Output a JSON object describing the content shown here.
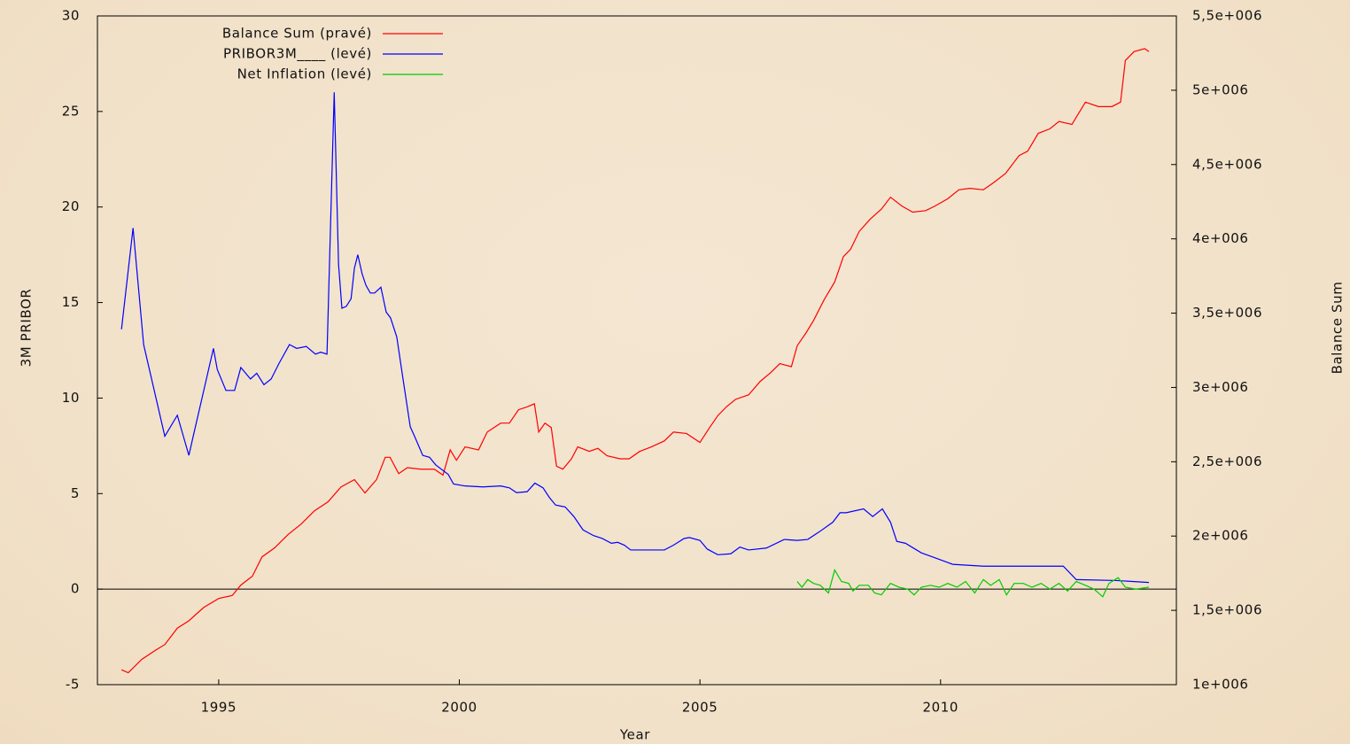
{
  "chart_data": {
    "type": "line",
    "xlabel": "Year",
    "ylabel": "3M PRIBOR",
    "y2label": "Balance Sum",
    "xlim": [
      1992.48,
      2014.9
    ],
    "xticks": [
      1995,
      2000,
      2005,
      2010
    ],
    "ylim": [
      -5,
      30
    ],
    "yticks": [
      -5,
      0,
      5,
      10,
      15,
      20,
      25,
      30
    ],
    "y2lim": [
      1000000,
      5500000
    ],
    "y2ticks": [
      {
        "value": 1000000,
        "label": "1e+006"
      },
      {
        "value": 1500000,
        "label": "1,5e+006"
      },
      {
        "value": 2000000,
        "label": "2e+006"
      },
      {
        "value": 2500000,
        "label": "2,5e+006"
      },
      {
        "value": 3000000,
        "label": "3e+006"
      },
      {
        "value": 3500000,
        "label": "3,5e+006"
      },
      {
        "value": 4000000,
        "label": "4e+006"
      },
      {
        "value": 4500000,
        "label": "4,5e+006"
      },
      {
        "value": 5000000,
        "label": "5e+006"
      },
      {
        "value": 5500000,
        "label": "5,5e+006"
      }
    ],
    "zero_line": true,
    "grid": false,
    "legend": "top-left",
    "series": [
      {
        "name": "Balance Sum (pravé)",
        "color": "#ff0000",
        "axis": "y2",
        "x": [
          1992.98,
          1993.12,
          1993.4,
          1993.68,
          1993.88,
          1994.14,
          1994.38,
          1994.69,
          1995.0,
          1995.28,
          1995.46,
          1995.7,
          1995.9,
          1996.16,
          1996.44,
          1996.71,
          1996.99,
          1997.27,
          1997.54,
          1997.82,
          1998.04,
          1998.28,
          1998.46,
          1998.56,
          1998.74,
          1998.92,
          1999.2,
          1999.48,
          1999.66,
          1999.81,
          1999.94,
          2000.12,
          2000.4,
          2000.58,
          2000.86,
          2001.04,
          2001.23,
          2001.41,
          2001.56,
          2001.65,
          2001.78,
          2001.91,
          2002.02,
          2002.15,
          2002.33,
          2002.46,
          2002.7,
          2002.88,
          2003.07,
          2003.34,
          2003.53,
          2003.75,
          2003.99,
          2004.26,
          2004.45,
          2004.72,
          2005.0,
          2005.18,
          2005.37,
          2005.55,
          2005.74,
          2006.01,
          2006.25,
          2006.47,
          2006.66,
          2006.9,
          2007.02,
          2007.21,
          2007.36,
          2007.58,
          2007.8,
          2007.98,
          2008.13,
          2008.31,
          2008.53,
          2008.77,
          2008.96,
          2009.2,
          2009.42,
          2009.69,
          2009.88,
          2010.15,
          2010.38,
          2010.61,
          2010.89,
          2011.11,
          2011.35,
          2011.63,
          2011.81,
          2012.03,
          2012.27,
          2012.46,
          2012.73,
          2013.01,
          2013.28,
          2013.56,
          2013.74,
          2013.84,
          2014.02,
          2014.24,
          2014.33
        ],
        "values": [
          1100000,
          1080000,
          1170000,
          1230000,
          1270000,
          1380000,
          1430000,
          1520000,
          1580000,
          1600000,
          1670000,
          1730000,
          1860000,
          1920000,
          2010000,
          2080000,
          2170000,
          2230000,
          2330000,
          2380000,
          2290000,
          2380000,
          2530000,
          2530000,
          2420000,
          2460000,
          2450000,
          2450000,
          2410000,
          2580000,
          2510000,
          2600000,
          2580000,
          2700000,
          2760000,
          2760000,
          2850000,
          2870000,
          2890000,
          2700000,
          2760000,
          2730000,
          2470000,
          2450000,
          2520000,
          2600000,
          2570000,
          2590000,
          2540000,
          2520000,
          2520000,
          2570000,
          2600000,
          2640000,
          2700000,
          2690000,
          2630000,
          2720000,
          2810000,
          2870000,
          2920000,
          2950000,
          3040000,
          3100000,
          3160000,
          3140000,
          3280000,
          3370000,
          3450000,
          3590000,
          3710000,
          3880000,
          3930000,
          4050000,
          4130000,
          4200000,
          4280000,
          4220000,
          4180000,
          4190000,
          4220000,
          4270000,
          4330000,
          4340000,
          4330000,
          4380000,
          4440000,
          4560000,
          4590000,
          4710000,
          4740000,
          4790000,
          4770000,
          4920000,
          4890000,
          4890000,
          4920000,
          5200000,
          5260000,
          5280000,
          5260000
        ]
      },
      {
        "name": "PRIBOR3M____ (levé)",
        "color": "#0000ff",
        "axis": "y",
        "x": [
          1992.98,
          1993.22,
          1993.44,
          1993.88,
          1994.14,
          1994.38,
          1994.47,
          1994.69,
          1994.89,
          1994.97,
          1995.15,
          1995.33,
          1995.46,
          1995.66,
          1995.79,
          1995.94,
          1996.09,
          1996.25,
          1996.47,
          1996.62,
          1996.82,
          1997.01,
          1997.12,
          1997.25,
          1997.4,
          1997.49,
          1997.56,
          1997.65,
          1997.75,
          1997.82,
          1997.89,
          1997.98,
          1998.06,
          1998.15,
          1998.24,
          1998.37,
          1998.48,
          1998.57,
          1998.7,
          1998.83,
          1998.98,
          1999.07,
          1999.24,
          1999.38,
          1999.51,
          1999.77,
          1999.88,
          2000.12,
          2000.49,
          2000.86,
          2001.04,
          2001.19,
          2001.41,
          2001.57,
          2001.74,
          2001.87,
          2002.0,
          2002.2,
          2002.38,
          2002.57,
          2002.79,
          2002.97,
          2003.16,
          2003.29,
          2003.43,
          2003.56,
          2003.89,
          2004.26,
          2004.45,
          2004.67,
          2004.78,
          2005.0,
          2005.15,
          2005.37,
          2005.64,
          2005.83,
          2006.01,
          2006.38,
          2006.75,
          2007.02,
          2007.24,
          2007.48,
          2007.76,
          2007.91,
          2008.04,
          2008.4,
          2008.59,
          2008.79,
          2008.96,
          2009.09,
          2009.27,
          2009.6,
          2009.93,
          2010.25,
          2010.89,
          2011.44,
          2012.18,
          2012.55,
          2012.82,
          2013.65,
          2014.33
        ],
        "values": [
          13.6,
          18.9,
          12.8,
          8.0,
          9.1,
          7.0,
          8.0,
          10.4,
          12.6,
          11.5,
          10.4,
          10.4,
          11.6,
          11.0,
          11.3,
          10.7,
          11.0,
          11.8,
          12.8,
          12.6,
          12.7,
          12.3,
          12.4,
          12.3,
          26.0,
          17.0,
          14.7,
          14.8,
          15.2,
          16.8,
          17.5,
          16.5,
          15.9,
          15.5,
          15.5,
          15.8,
          14.5,
          14.2,
          13.2,
          11.0,
          8.5,
          8.0,
          7.0,
          6.9,
          6.5,
          6.0,
          5.5,
          5.4,
          5.35,
          5.4,
          5.3,
          5.05,
          5.1,
          5.55,
          5.3,
          4.8,
          4.4,
          4.3,
          3.8,
          3.1,
          2.8,
          2.65,
          2.4,
          2.45,
          2.3,
          2.05,
          2.05,
          2.05,
          2.3,
          2.65,
          2.7,
          2.55,
          2.1,
          1.8,
          1.85,
          2.2,
          2.05,
          2.15,
          2.6,
          2.55,
          2.6,
          3.0,
          3.5,
          4.0,
          4.0,
          4.2,
          3.8,
          4.2,
          3.5,
          2.5,
          2.4,
          1.9,
          1.6,
          1.3,
          1.2,
          1.2,
          1.2,
          1.2,
          0.5,
          0.45,
          0.35
        ]
      },
      {
        "name": "Net Inflation (levé)",
        "color": "#00cc00",
        "axis": "y",
        "x": [
          2007.02,
          2007.12,
          2007.24,
          2007.36,
          2007.5,
          2007.67,
          2007.8,
          2007.94,
          2008.09,
          2008.18,
          2008.31,
          2008.5,
          2008.63,
          2008.77,
          2008.96,
          2009.14,
          2009.32,
          2009.45,
          2009.6,
          2009.79,
          2009.97,
          2010.15,
          2010.34,
          2010.52,
          2010.71,
          2010.89,
          2011.04,
          2011.22,
          2011.37,
          2011.53,
          2011.72,
          2011.9,
          2012.09,
          2012.27,
          2012.46,
          2012.64,
          2012.82,
          2013.01,
          2013.19,
          2013.37,
          2013.5,
          2013.69,
          2013.84,
          2014.06,
          2014.33
        ],
        "values": [
          0.4,
          0.1,
          0.5,
          0.3,
          0.2,
          -0.2,
          1.0,
          0.4,
          0.3,
          -0.1,
          0.2,
          0.2,
          -0.2,
          -0.3,
          0.3,
          0.1,
          0.0,
          -0.3,
          0.1,
          0.2,
          0.1,
          0.3,
          0.1,
          0.4,
          -0.2,
          0.5,
          0.2,
          0.5,
          -0.3,
          0.3,
          0.3,
          0.1,
          0.3,
          0.0,
          0.3,
          -0.1,
          0.4,
          0.2,
          0.0,
          -0.4,
          0.3,
          0.6,
          0.1,
          0.0,
          0.1
        ]
      }
    ]
  }
}
